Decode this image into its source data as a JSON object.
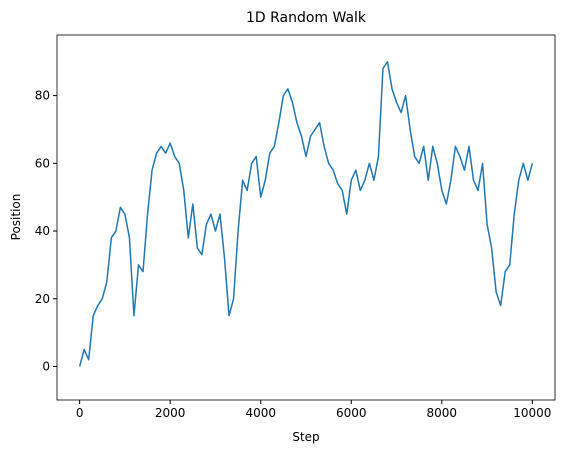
{
  "chart_data": {
    "type": "line",
    "title": "1D Random Walk",
    "x_label": "Step",
    "y_label": "Position",
    "x": [
      0,
      100,
      200,
      300,
      400,
      500,
      600,
      700,
      800,
      900,
      1000,
      1100,
      1200,
      1300,
      1400,
      1500,
      1600,
      1700,
      1800,
      1900,
      2000,
      2100,
      2200,
      2300,
      2400,
      2500,
      2600,
      2700,
      2800,
      2900,
      3000,
      3100,
      3200,
      3300,
      3400,
      3500,
      3600,
      3700,
      3800,
      3900,
      4000,
      4100,
      4200,
      4300,
      4400,
      4500,
      4600,
      4700,
      4800,
      4900,
      5000,
      5100,
      5200,
      5300,
      5400,
      5500,
      5600,
      5700,
      5800,
      5900,
      6000,
      6100,
      6200,
      6300,
      6400,
      6500,
      6600,
      6700,
      6800,
      6900,
      7000,
      7100,
      7200,
      7300,
      7400,
      7500,
      7600,
      7700,
      7800,
      7900,
      8000,
      8100,
      8200,
      8300,
      8400,
      8500,
      8600,
      8700,
      8800,
      8900,
      9000,
      9100,
      9200,
      9300,
      9400,
      9500,
      9600,
      9700,
      9800,
      9900,
      10000
    ],
    "series": [
      {
        "name": "Position",
        "color": "#1f77b4",
        "values": [
          0,
          5,
          2,
          15,
          18,
          20,
          25,
          38,
          40,
          47,
          45,
          38,
          15,
          30,
          28,
          45,
          58,
          63,
          65,
          63,
          66,
          62,
          60,
          52,
          38,
          48,
          35,
          33,
          42,
          45,
          40,
          45,
          32,
          15,
          20,
          40,
          55,
          52,
          60,
          62,
          50,
          55,
          63,
          65,
          72,
          80,
          82,
          78,
          72,
          68,
          62,
          68,
          70,
          72,
          65,
          60,
          58,
          54,
          52,
          45,
          55,
          58,
          52,
          55,
          60,
          55,
          62,
          88,
          90,
          82,
          78,
          75,
          80,
          70,
          62,
          60,
          65,
          55,
          65,
          60,
          52,
          48,
          55,
          65,
          62,
          58,
          65,
          55,
          52,
          60,
          42,
          35,
          22,
          18,
          28,
          30,
          45,
          55,
          60,
          55,
          60
        ]
      }
    ],
    "xlim": [
      -500,
      10500
    ],
    "ylim": [
      -9.9,
      97.9
    ],
    "xticks": [
      0,
      2000,
      4000,
      6000,
      8000,
      10000
    ],
    "yticks": [
      0,
      20,
      40,
      60,
      80
    ],
    "grid": false
  }
}
